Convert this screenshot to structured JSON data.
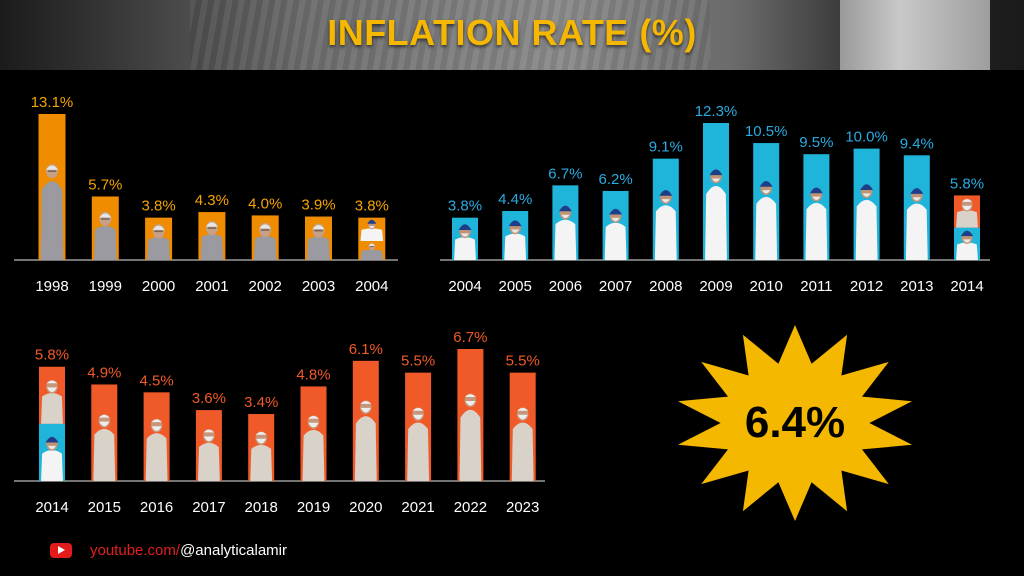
{
  "header": {
    "title": "INFLATION RATE (%)"
  },
  "highlight": {
    "value": "6.4%",
    "color": "#f5b800",
    "icon": "starburst"
  },
  "footer": {
    "url_prefix": "youtube.com/",
    "handle": "@analyticalamir",
    "icon": "youtube-icon"
  },
  "colors": {
    "vajpayee": "#f08c00",
    "manmohan": "#1fb4d9",
    "modi": "#f05a28"
  },
  "chart_data": [
    {
      "type": "bar",
      "categories": [
        "1998",
        "1999",
        "2000",
        "2001",
        "2002",
        "2003",
        "2004"
      ],
      "values": [
        13.1,
        5.7,
        3.8,
        4.3,
        4.0,
        3.9,
        3.8
      ],
      "labels": [
        "13.1%",
        "5.7%",
        "3.8%",
        "4.3%",
        "4.0%",
        "3.9%",
        "3.8%"
      ],
      "label_color": "#f5a300",
      "ylim": [
        0,
        13.1
      ],
      "grid": false
    },
    {
      "type": "bar",
      "categories": [
        "2004",
        "2005",
        "2006",
        "2007",
        "2008",
        "2009",
        "2010",
        "2011",
        "2012",
        "2013",
        "2014"
      ],
      "values": [
        3.8,
        4.4,
        6.7,
        6.2,
        9.1,
        12.3,
        10.5,
        9.5,
        10.0,
        9.4,
        5.8
      ],
      "labels": [
        "3.8%",
        "4.4%",
        "6.7%",
        "6.2%",
        "9.1%",
        "12.3%",
        "10.5%",
        "9.5%",
        "10.0%",
        "9.4%",
        "5.8%"
      ],
      "label_color": "#29abe2",
      "ylim": [
        0,
        12.3
      ],
      "grid": false
    },
    {
      "type": "bar",
      "categories": [
        "2014",
        "2015",
        "2016",
        "2017",
        "2018",
        "2019",
        "2020",
        "2021",
        "2022",
        "2023"
      ],
      "values": [
        5.8,
        4.9,
        4.5,
        3.6,
        3.4,
        4.8,
        6.1,
        5.5,
        6.7,
        5.5
      ],
      "labels": [
        "5.8%",
        "4.9%",
        "4.5%",
        "3.6%",
        "3.4%",
        "4.8%",
        "6.1%",
        "5.5%",
        "6.7%",
        "5.5%"
      ],
      "label_color": "#f05a28",
      "ylim": [
        0,
        6.7
      ],
      "grid": false
    }
  ]
}
